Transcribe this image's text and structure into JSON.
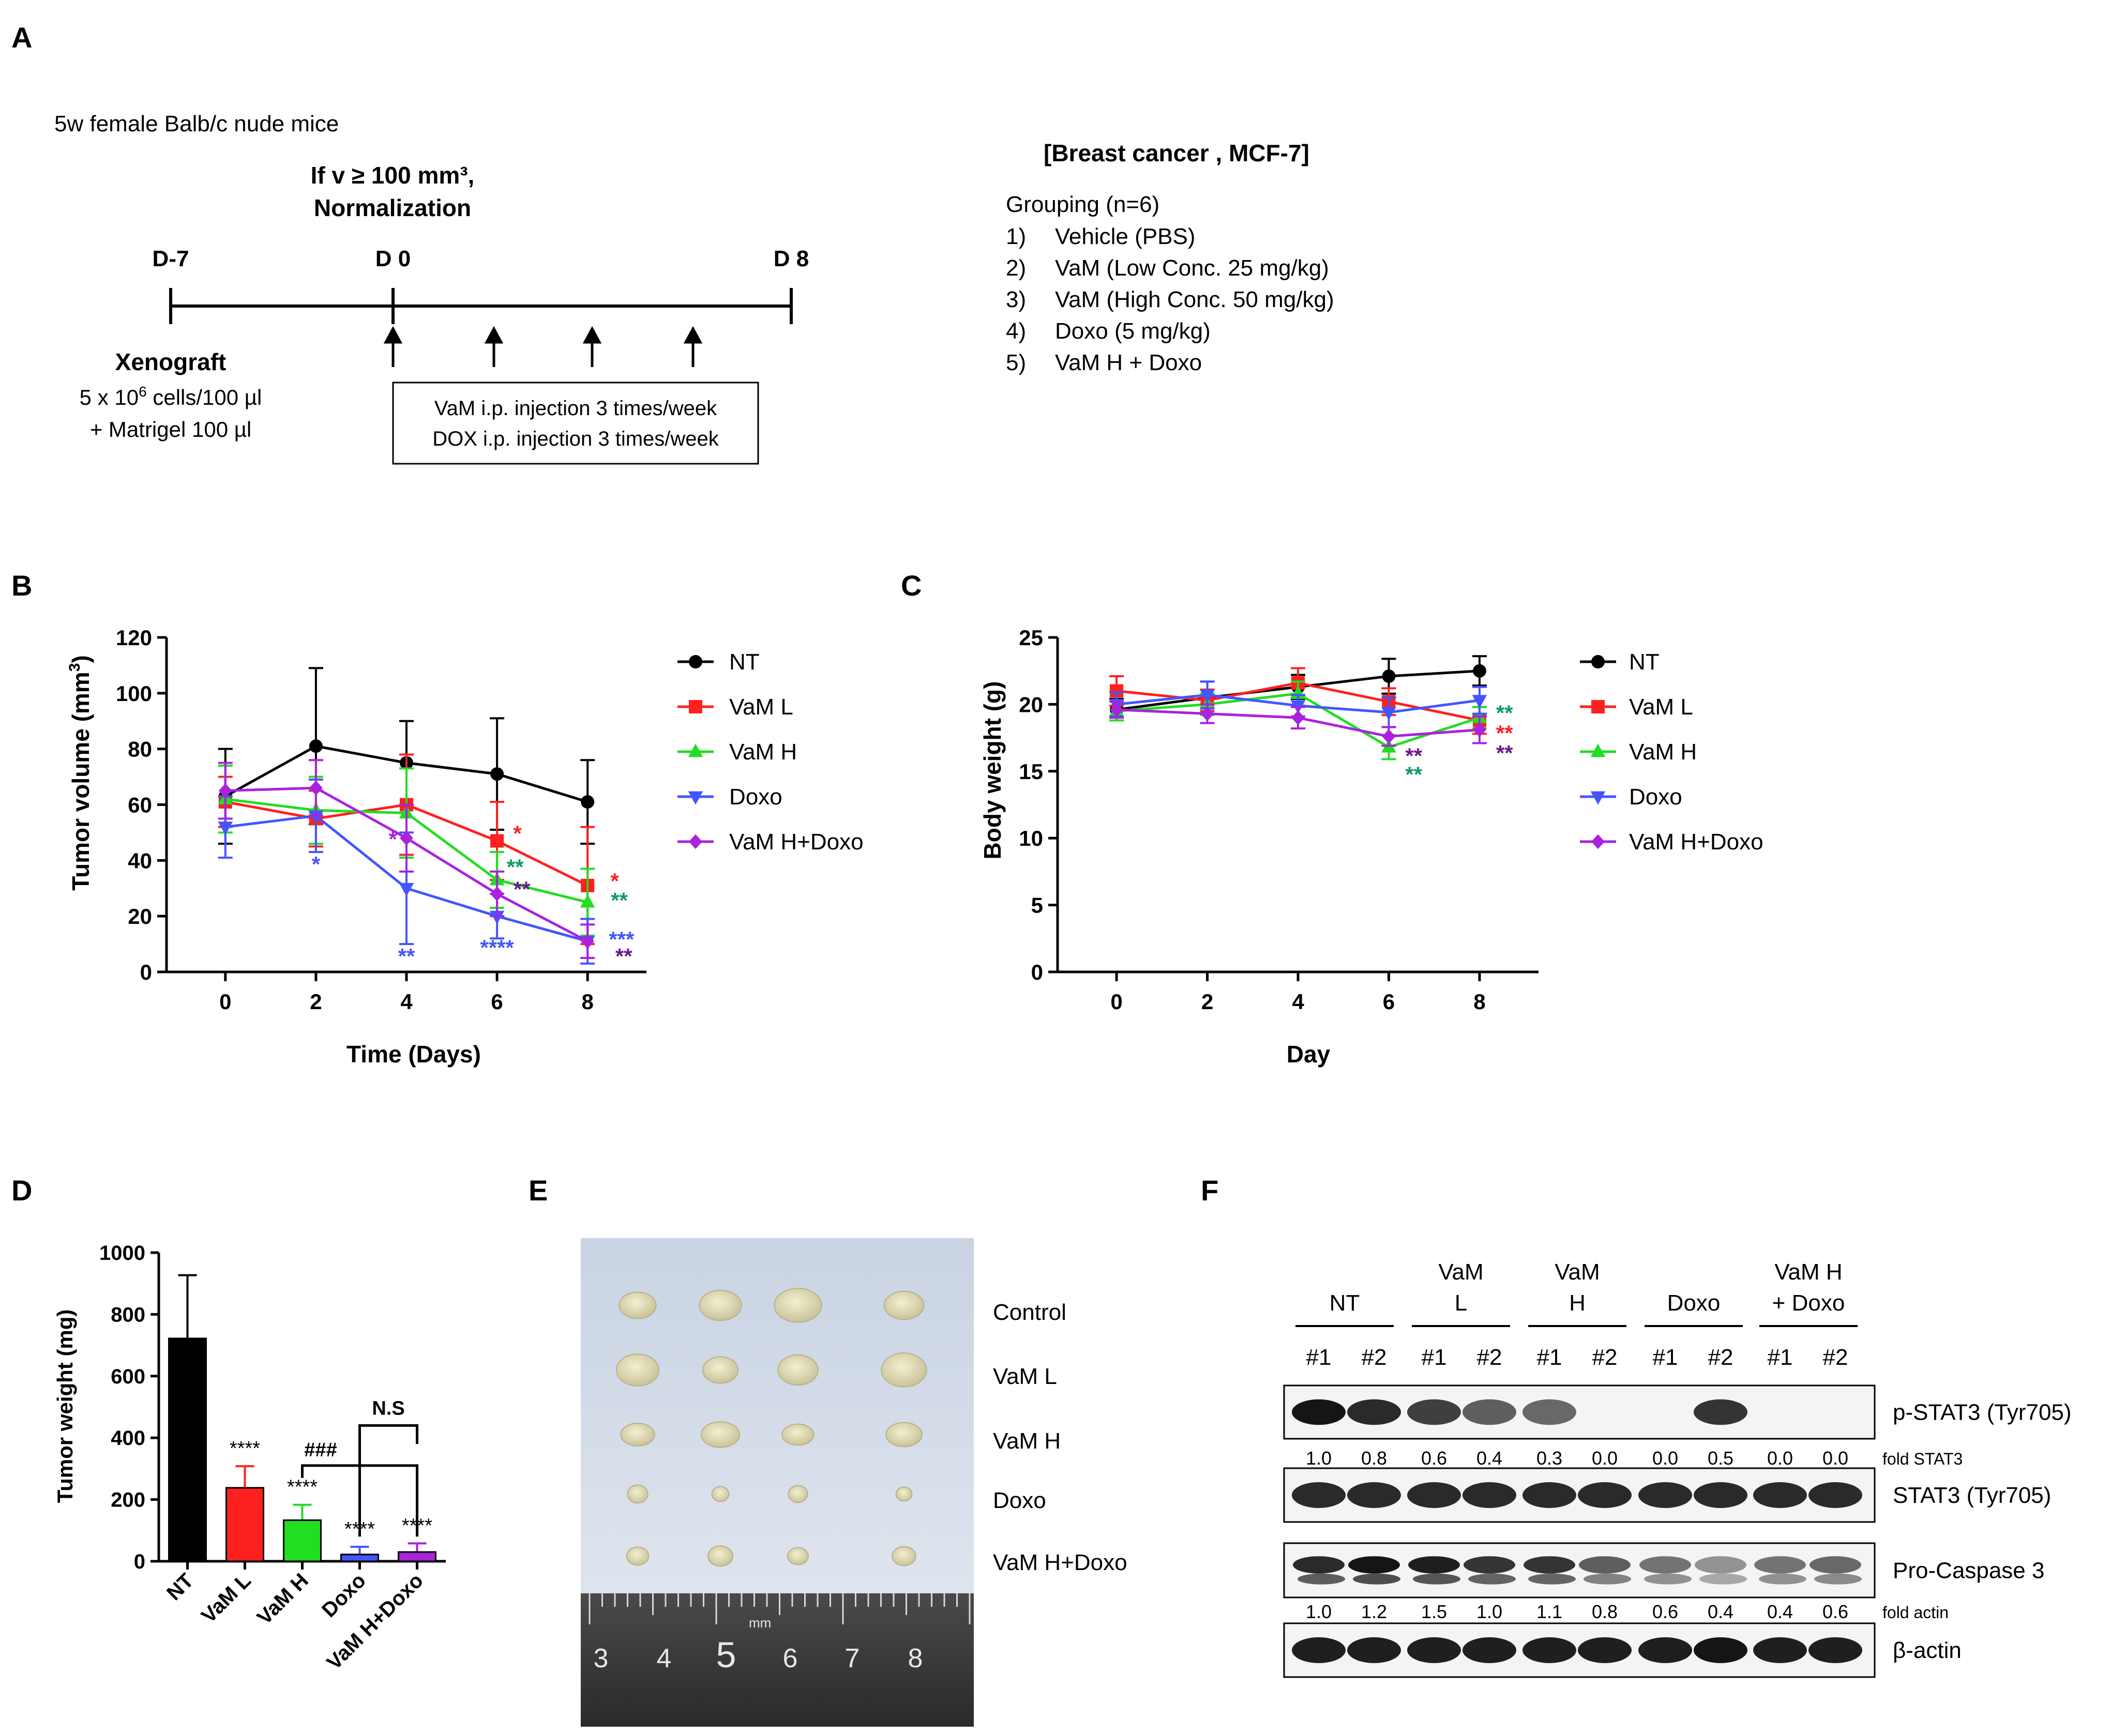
{
  "panel_labels": {
    "a": "A",
    "b": "B",
    "c": "C",
    "d": "D",
    "e": "E",
    "f": "F"
  },
  "schematic": {
    "mouse_line": "5w female Balb/c nude mice",
    "norm_line1": "If v ≥ 100 mm³,",
    "norm_line2": "Normalization",
    "d_minus7": "D-7",
    "d0": "D 0",
    "d8": "D 8",
    "xenograft_title": "Xenograft",
    "xenograft_cells_pre": "5 x 10",
    "xenograft_cells_sup": "6",
    "xenograft_cells_post": " cells/100 µl",
    "xenograft_matrigel": "+ Matrigel 100 µl",
    "injection_line1": "VaM i.p. injection 3 times/week",
    "injection_line2": "DOX i.p. injection 3 times/week",
    "grouping_title": "[Breast cancer , MCF-7]",
    "grouping_n": "Grouping (n=6)",
    "groups": [
      {
        "num": "1)",
        "label": "Vehicle (PBS)"
      },
      {
        "num": "2)",
        "label": "VaM (Low Conc. 25 mg/kg)"
      },
      {
        "num": "3)",
        "label": "VaM (High Conc. 50 mg/kg)"
      },
      {
        "num": "4)",
        "label": "Doxo (5 mg/kg)"
      },
      {
        "num": "5)",
        "label": "VaM H + Doxo"
      }
    ]
  },
  "colors": {
    "NT": "#000000",
    "VaM L": "#ff2020",
    "VaM H": "#22dd22",
    "Doxo": "#4455ff",
    "VaM H+Doxo": "#aa22dd",
    "star_green": "#119966",
    "star_purple": "#6a1b8a"
  },
  "chart_data": [
    {
      "id": "B",
      "type": "line",
      "xlabel": "Time (Days)",
      "ylabel": "Tumor volume (mm",
      "ylabel_sup": "3",
      "ylabel_end": ")",
      "x": [
        0,
        2,
        4,
        6,
        8
      ],
      "xlim": [
        -1.3,
        9.3
      ],
      "ylim": [
        0,
        120
      ],
      "yticks": [
        0,
        20,
        40,
        60,
        80,
        100,
        120
      ],
      "series": [
        {
          "name": "NT",
          "values": [
            63,
            81,
            75,
            71,
            61
          ],
          "err": [
            17,
            28,
            15,
            20,
            15
          ]
        },
        {
          "name": "VaM L",
          "values": [
            61,
            55,
            60,
            47,
            31
          ],
          "err": [
            9,
            10,
            18,
            14,
            21
          ]
        },
        {
          "name": "VaM H",
          "values": [
            62,
            58,
            57,
            33,
            25
          ],
          "err": [
            12,
            12,
            16,
            10,
            12
          ]
        },
        {
          "name": "Doxo",
          "values": [
            52,
            56,
            30,
            20,
            11
          ],
          "err": [
            11,
            13,
            20,
            8,
            8
          ]
        },
        {
          "name": "VaM H+Doxo",
          "values": [
            65,
            66,
            48,
            28,
            11
          ],
          "err": [
            10,
            10,
            12,
            8,
            6
          ]
        }
      ],
      "annotations": [
        {
          "text": "*",
          "x": 2.0,
          "y": 36,
          "color": "#4455ff"
        },
        {
          "text": "*",
          "x": 3.7,
          "y": 45,
          "color": "#aa22dd"
        },
        {
          "text": "**",
          "x": 4.0,
          "y": 3,
          "color": "#4455ff"
        },
        {
          "text": "*",
          "x": 6.45,
          "y": 47,
          "color": "#ff2020"
        },
        {
          "text": "**",
          "x": 6.4,
          "y": 35,
          "color": "#119966"
        },
        {
          "text": "**",
          "x": 6.55,
          "y": 27,
          "color": "#6a1b8a"
        },
        {
          "text": "****",
          "x": 6.0,
          "y": 6,
          "color": "#4455ff"
        },
        {
          "text": "*",
          "x": 8.6,
          "y": 30,
          "color": "#ff2020"
        },
        {
          "text": "**",
          "x": 8.7,
          "y": 23,
          "color": "#119966"
        },
        {
          "text": "***",
          "x": 8.75,
          "y": 9,
          "color": "#4455ff"
        },
        {
          "text": "**",
          "x": 8.8,
          "y": 3,
          "color": "#6a1b8a"
        }
      ]
    },
    {
      "id": "C",
      "type": "line",
      "xlabel": "Day",
      "ylabel": "Body weight (g)",
      "x": [
        0,
        2,
        4,
        6,
        8
      ],
      "xlim": [
        -1.3,
        9.3
      ],
      "ylim": [
        0,
        25
      ],
      "yticks": [
        0,
        5,
        10,
        15,
        20,
        25
      ],
      "series": [
        {
          "name": "NT",
          "values": [
            19.6,
            20.5,
            21.3,
            22.1,
            22.5
          ],
          "err": [
            0.8,
            1.2,
            0.9,
            1.3,
            1.1
          ]
        },
        {
          "name": "VaM L",
          "values": [
            21.0,
            20.3,
            21.6,
            20.2,
            18.8
          ],
          "err": [
            1.1,
            0.8,
            1.1,
            1.0,
            1.0
          ]
        },
        {
          "name": "VaM H",
          "values": [
            19.5,
            20.0,
            20.8,
            16.8,
            19.0
          ],
          "err": [
            0.7,
            0.8,
            0.9,
            0.9,
            0.8
          ]
        },
        {
          "name": "Doxo",
          "values": [
            20.0,
            20.7,
            19.9,
            19.4,
            20.3
          ],
          "err": [
            0.9,
            1.0,
            0.8,
            1.1,
            1.0
          ]
        },
        {
          "name": "VaM H+Doxo",
          "values": [
            19.6,
            19.3,
            19.0,
            17.6,
            18.1
          ],
          "err": [
            0.6,
            0.7,
            0.8,
            0.7,
            1.0
          ]
        }
      ],
      "legend": [
        "NT",
        "VaM L",
        "VaM H",
        "Doxo",
        "VaM H+Doxo"
      ],
      "annotations": [
        {
          "text": "**",
          "x": 8.55,
          "y": 18.8,
          "color": "#119966"
        },
        {
          "text": "**",
          "x": 8.55,
          "y": 17.3,
          "color": "#ff2020"
        },
        {
          "text": "**",
          "x": 8.55,
          "y": 15.8,
          "color": "#6a1b8a"
        },
        {
          "text": "**",
          "x": 6.55,
          "y": 15.6,
          "color": "#6a1b8a"
        },
        {
          "text": "**",
          "x": 6.55,
          "y": 14.2,
          "color": "#119966"
        }
      ]
    },
    {
      "id": "D",
      "type": "bar",
      "ylabel": "Tumor weight (mg)",
      "categories": [
        "NT",
        "VaM L",
        "VaM H",
        "Doxo",
        "VaM H+Doxo"
      ],
      "values": [
        722,
        238,
        133,
        22,
        30
      ],
      "err": [
        205,
        70,
        50,
        25,
        28
      ],
      "ylim": [
        0,
        1000
      ],
      "yticks": [
        0,
        200,
        400,
        600,
        800,
        1000
      ],
      "stars": [
        "",
        "****",
        "****",
        "****",
        "****"
      ],
      "bracket_hash": "###",
      "bracket_ns": "N.S"
    }
  ],
  "photo": {
    "labels": [
      "Control",
      "VaM L",
      "VaM H",
      "Doxo",
      "VaM H+Doxo"
    ],
    "ruler_numbers": [
      "3",
      "4",
      "5",
      "6",
      "7",
      "8"
    ],
    "ruler_unit": "mm"
  },
  "blot": {
    "groups": [
      {
        "line1": "",
        "line2": "NT"
      },
      {
        "line1": "VaM",
        "line2": "L"
      },
      {
        "line1": "VaM",
        "line2": "H"
      },
      {
        "line1": "",
        "line2": "Doxo"
      },
      {
        "line1": "VaM H",
        "line2": "+ Doxo"
      }
    ],
    "lanes": [
      "#1",
      "#2",
      "#1",
      "#2",
      "#1",
      "#2",
      "#1",
      "#2",
      "#1",
      "#2"
    ],
    "pstat3_label": "p-STAT3 (Tyr705)",
    "pstat3_intensity": [
      0.95,
      0.85,
      0.75,
      0.6,
      0.55,
      0.0,
      0.0,
      0.8,
      0.0,
      0.0
    ],
    "fold_stat3_values": [
      "1.0",
      "0.8",
      "0.6",
      "0.4",
      "0.3",
      "0.0",
      "0.0",
      "0.5",
      "0.0",
      "0.0"
    ],
    "fold_stat3_label": "fold STAT3",
    "stat3_label": "STAT3 (Tyr705)",
    "stat3_intensity": [
      0.85,
      0.85,
      0.85,
      0.85,
      0.85,
      0.85,
      0.85,
      0.85,
      0.85,
      0.85
    ],
    "procasp_label": "Pro-Caspase 3",
    "procasp_intensity": [
      0.85,
      0.95,
      0.9,
      0.8,
      0.8,
      0.6,
      0.5,
      0.35,
      0.5,
      0.55
    ],
    "fold_actin_values": [
      "1.0",
      "1.2",
      "1.5",
      "1.0",
      "1.1",
      "0.8",
      "0.6",
      "0.4",
      "0.4",
      "0.6"
    ],
    "fold_actin_label": "fold actin",
    "actin_label": "β-actin",
    "actin_intensity": [
      0.9,
      0.9,
      0.9,
      0.9,
      0.9,
      0.9,
      0.9,
      0.95,
      0.9,
      0.9
    ]
  }
}
